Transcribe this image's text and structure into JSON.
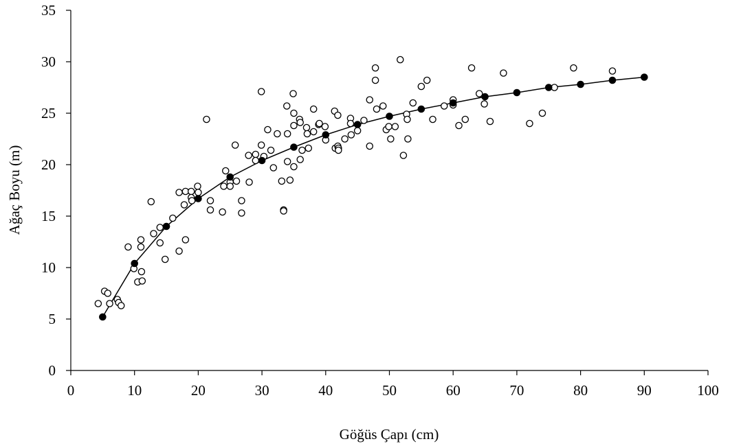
{
  "chart_data": {
    "type": "scatter",
    "title": "",
    "xlabel": "Göğüs Çapı (cm)",
    "ylabel": "Ağaç Boyu (m)",
    "xlim": [
      0,
      100
    ],
    "ylim": [
      0,
      35
    ],
    "x_ticks": [
      0,
      10,
      20,
      30,
      40,
      50,
      60,
      70,
      80,
      90,
      100
    ],
    "y_ticks": [
      0,
      5,
      10,
      15,
      20,
      25,
      30,
      35
    ],
    "x_tick_labels": [
      "0",
      "10",
      "20",
      "30",
      "40",
      "50",
      "60",
      "70",
      "80",
      "90",
      "100"
    ],
    "y_tick_labels": [
      "0",
      "5",
      "10",
      "15",
      "20",
      "25",
      "30",
      "35"
    ],
    "grid": false,
    "legend": "none",
    "series": [
      {
        "marker": "open-circle",
        "points": [
          [
            4.3,
            6.5
          ],
          [
            5.3,
            7.7
          ],
          [
            5.8,
            7.5
          ],
          [
            6.1,
            6.5
          ],
          [
            7.3,
            6.9
          ],
          [
            7.5,
            6.6
          ],
          [
            7.9,
            6.3
          ],
          [
            9.0,
            12.0
          ],
          [
            9.9,
            9.9
          ],
          [
            10.5,
            8.6
          ],
          [
            11.0,
            12.7
          ],
          [
            11.0,
            12.0
          ],
          [
            11.1,
            9.6
          ],
          [
            11.2,
            8.7
          ],
          [
            12.6,
            16.4
          ],
          [
            13.0,
            13.3
          ],
          [
            14.0,
            13.9
          ],
          [
            14.0,
            12.4
          ],
          [
            14.8,
            10.8
          ],
          [
            16.0,
            14.8
          ],
          [
            17.0,
            17.3
          ],
          [
            17.0,
            11.6
          ],
          [
            17.8,
            16.1
          ],
          [
            18.0,
            17.4
          ],
          [
            18.0,
            12.7
          ],
          [
            18.9,
            17.4
          ],
          [
            18.9,
            16.8
          ],
          [
            19.0,
            16.5
          ],
          [
            19.9,
            17.9
          ],
          [
            20.0,
            17.3
          ],
          [
            21.3,
            24.4
          ],
          [
            21.9,
            16.5
          ],
          [
            21.9,
            15.6
          ],
          [
            23.8,
            15.4
          ],
          [
            24.0,
            17.9
          ],
          [
            24.3,
            19.4
          ],
          [
            25.0,
            18.3
          ],
          [
            25.0,
            17.9
          ],
          [
            25.8,
            21.9
          ],
          [
            26.0,
            18.4
          ],
          [
            26.8,
            16.5
          ],
          [
            26.8,
            15.3
          ],
          [
            27.9,
            20.9
          ],
          [
            28.0,
            18.3
          ],
          [
            29.0,
            21.0
          ],
          [
            29.0,
            20.4
          ],
          [
            29.9,
            27.1
          ],
          [
            29.9,
            21.9
          ],
          [
            30.3,
            20.8
          ],
          [
            30.9,
            23.4
          ],
          [
            31.4,
            21.4
          ],
          [
            31.8,
            19.7
          ],
          [
            32.4,
            23.0
          ],
          [
            33.1,
            18.4
          ],
          [
            33.4,
            15.6
          ],
          [
            33.4,
            15.5
          ],
          [
            33.9,
            25.7
          ],
          [
            34.0,
            23.0
          ],
          [
            34.0,
            20.3
          ],
          [
            34.4,
            18.5
          ],
          [
            34.9,
            26.9
          ],
          [
            35.0,
            25.0
          ],
          [
            35.0,
            23.8
          ],
          [
            35.0,
            19.8
          ],
          [
            35.9,
            24.4
          ],
          [
            36.0,
            24.1
          ],
          [
            36.0,
            20.5
          ],
          [
            36.3,
            21.4
          ],
          [
            37.0,
            23.6
          ],
          [
            37.1,
            23.0
          ],
          [
            37.3,
            21.6
          ],
          [
            38.1,
            25.4
          ],
          [
            38.1,
            23.2
          ],
          [
            38.9,
            23.9
          ],
          [
            39.0,
            24.0
          ],
          [
            39.9,
            23.7
          ],
          [
            40.0,
            22.4
          ],
          [
            41.4,
            25.2
          ],
          [
            41.5,
            21.6
          ],
          [
            41.9,
            24.8
          ],
          [
            41.9,
            21.8
          ],
          [
            42.0,
            21.6
          ],
          [
            42.0,
            21.4
          ],
          [
            43.0,
            22.5
          ],
          [
            43.9,
            24.5
          ],
          [
            43.9,
            24.0
          ],
          [
            44.0,
            22.9
          ],
          [
            45.0,
            23.3
          ],
          [
            46.0,
            24.3
          ],
          [
            46.9,
            26.3
          ],
          [
            46.9,
            21.8
          ],
          [
            47.8,
            29.4
          ],
          [
            47.8,
            28.2
          ],
          [
            48.0,
            25.4
          ],
          [
            49.0,
            25.7
          ],
          [
            49.5,
            23.4
          ],
          [
            49.9,
            23.7
          ],
          [
            50.2,
            22.5
          ],
          [
            50.9,
            23.7
          ],
          [
            51.7,
            30.2
          ],
          [
            52.2,
            20.9
          ],
          [
            52.7,
            24.9
          ],
          [
            52.8,
            24.4
          ],
          [
            52.9,
            22.5
          ],
          [
            53.7,
            26.0
          ],
          [
            55.0,
            27.6
          ],
          [
            55.9,
            28.2
          ],
          [
            56.8,
            24.4
          ],
          [
            58.6,
            25.7
          ],
          [
            60.0,
            26.3
          ],
          [
            60.0,
            25.8
          ],
          [
            60.9,
            23.8
          ],
          [
            61.9,
            24.4
          ],
          [
            62.9,
            29.4
          ],
          [
            64.1,
            26.9
          ],
          [
            64.9,
            25.9
          ],
          [
            65.8,
            24.2
          ],
          [
            67.9,
            28.9
          ],
          [
            72.0,
            24.0
          ],
          [
            74.0,
            25.0
          ],
          [
            75.9,
            27.5
          ],
          [
            78.9,
            29.4
          ],
          [
            85.0,
            29.1
          ]
        ]
      },
      {
        "marker": "filled-circle",
        "points": [
          [
            5,
            5.2
          ],
          [
            10,
            10.4
          ],
          [
            15,
            14.0
          ],
          [
            20,
            16.7
          ],
          [
            25,
            18.8
          ],
          [
            30,
            20.4
          ],
          [
            35,
            21.7
          ],
          [
            40,
            22.9
          ],
          [
            45,
            23.9
          ],
          [
            50,
            24.7
          ],
          [
            55,
            25.4
          ],
          [
            60,
            26.0
          ],
          [
            65,
            26.6
          ],
          [
            70,
            27.0
          ],
          [
            75,
            27.5
          ],
          [
            80,
            27.8
          ],
          [
            85,
            28.2
          ],
          [
            90,
            28.5
          ]
        ]
      }
    ]
  }
}
